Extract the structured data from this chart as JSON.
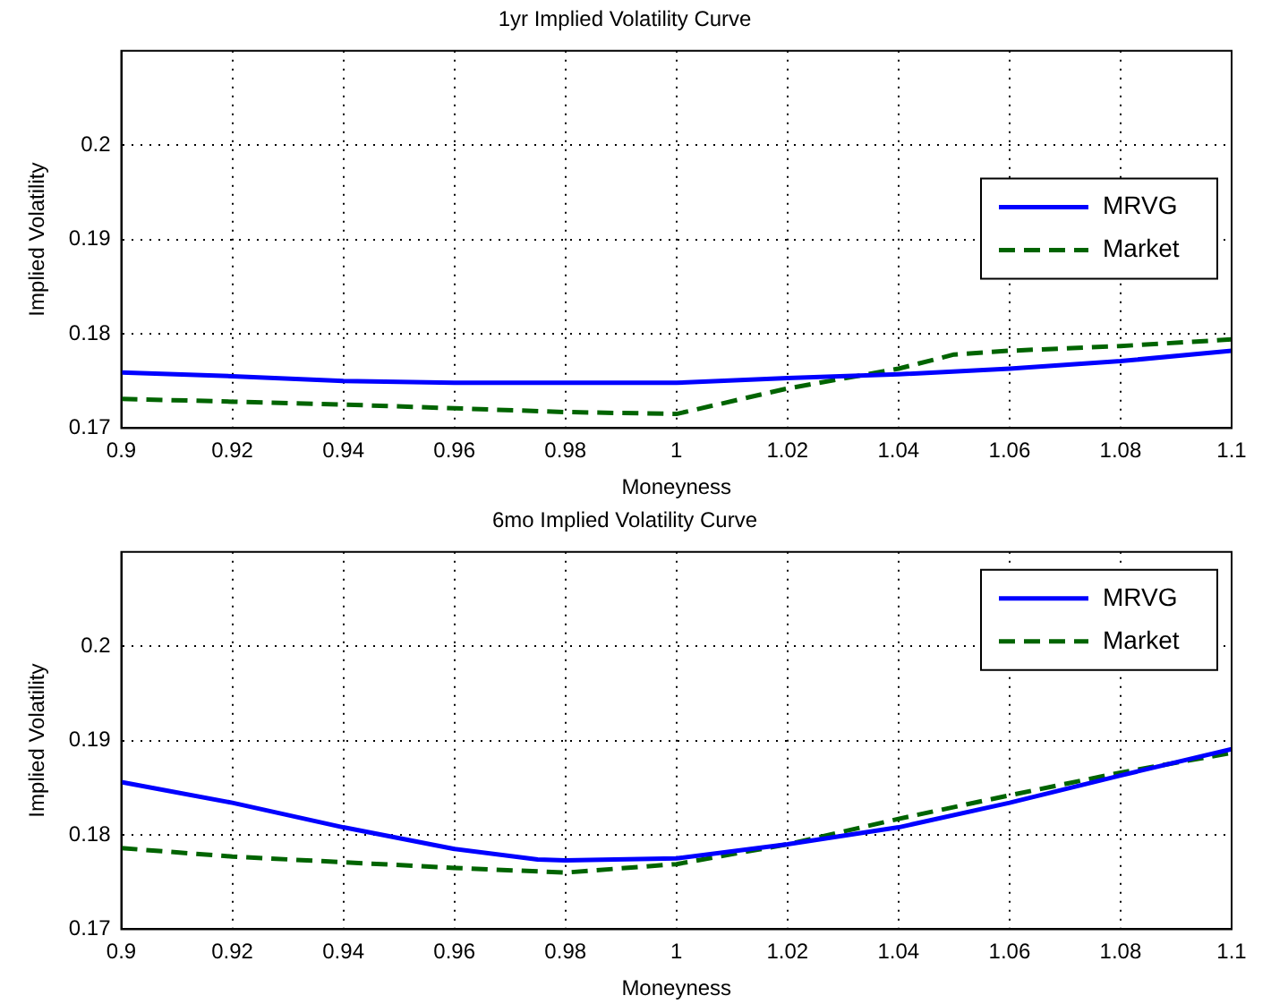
{
  "chart_data": [
    {
      "type": "line",
      "title": "1yr Implied Volatility Curve",
      "xlabel": "Moneyness",
      "ylabel": "Implied Volatility",
      "xlim": [
        0.9,
        1.1
      ],
      "xticks": [
        0.9,
        0.92,
        0.94,
        0.96,
        0.98,
        1,
        1.02,
        1.04,
        1.06,
        1.08,
        1.1
      ],
      "ylim": [
        0.17,
        0.21
      ],
      "yticks": [
        0.17,
        0.18,
        0.19,
        0.2
      ],
      "grid": true,
      "legend": "right",
      "series": [
        {
          "name": "MRVG",
          "color": "#0000ff",
          "line_style": "solid",
          "x": [
            0.9,
            0.92,
            0.94,
            0.96,
            0.98,
            1,
            1.02,
            1.04,
            1.06,
            1.08,
            1.1
          ],
          "values": [
            0.1759,
            0.1755,
            0.175,
            0.1748,
            0.1748,
            0.1748,
            0.1753,
            0.1757,
            0.1763,
            0.1771,
            0.1782
          ]
        },
        {
          "name": "Market",
          "color": "#006400",
          "line_style": "dashed",
          "x": [
            0.9,
            0.92,
            0.94,
            0.96,
            0.98,
            1,
            1.02,
            1.04,
            1.05,
            1.06,
            1.08,
            1.1
          ],
          "values": [
            0.1731,
            0.1728,
            0.1725,
            0.1721,
            0.1717,
            0.1715,
            0.1742,
            0.1763,
            0.1778,
            0.1782,
            0.1787,
            0.1794
          ]
        }
      ]
    },
    {
      "type": "line",
      "title": "6mo Implied Volatility Curve",
      "xlabel": "Moneyness",
      "ylabel": "Implied Volatility",
      "xlim": [
        0.9,
        1.1
      ],
      "xticks": [
        0.9,
        0.92,
        0.94,
        0.96,
        0.98,
        1,
        1.02,
        1.04,
        1.06,
        1.08,
        1.1
      ],
      "ylim": [
        0.17,
        0.21
      ],
      "yticks": [
        0.17,
        0.18,
        0.19,
        0.2
      ],
      "grid": true,
      "legend": "top right",
      "series": [
        {
          "name": "MRVG",
          "color": "#0000ff",
          "line_style": "solid",
          "x": [
            0.9,
            0.92,
            0.94,
            0.96,
            0.975,
            0.98,
            1,
            1.02,
            1.04,
            1.06,
            1.08,
            1.1
          ],
          "values": [
            0.1856,
            0.1834,
            0.1808,
            0.1785,
            0.1774,
            0.1773,
            0.1775,
            0.179,
            0.1808,
            0.1834,
            0.1863,
            0.1891
          ]
        },
        {
          "name": "Market",
          "color": "#006400",
          "line_style": "dashed",
          "x": [
            0.9,
            0.92,
            0.94,
            0.96,
            0.98,
            1,
            1.02,
            1.04,
            1.06,
            1.08,
            1.1
          ],
          "values": [
            0.1786,
            0.1777,
            0.1771,
            0.1765,
            0.176,
            0.1769,
            0.179,
            0.1817,
            0.1842,
            0.1866,
            0.1887
          ]
        }
      ]
    }
  ]
}
